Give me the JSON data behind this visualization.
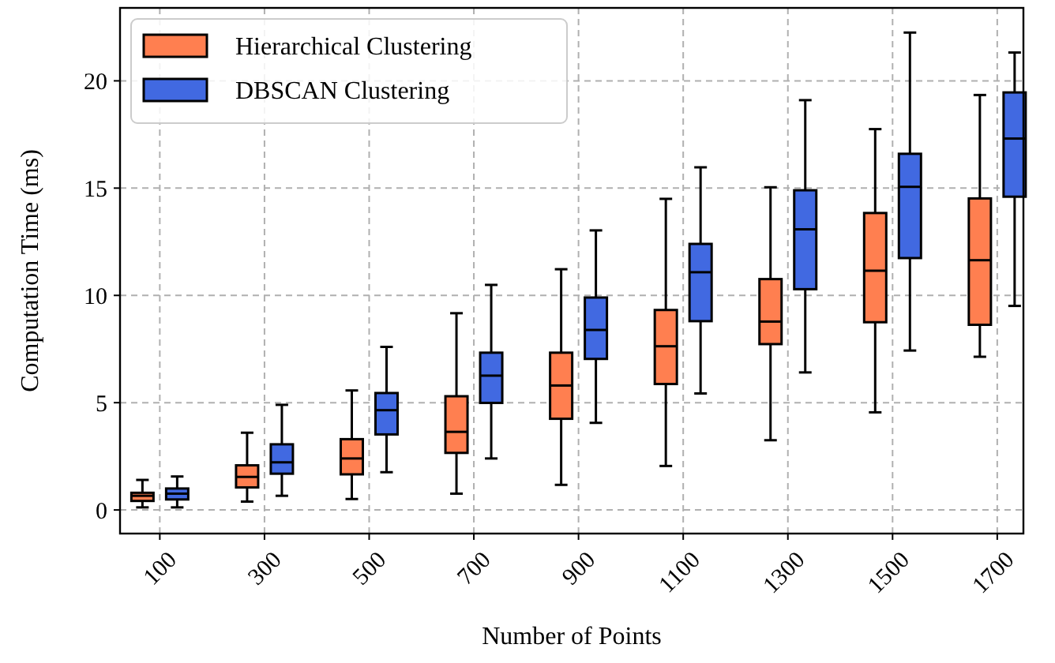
{
  "chart_data": {
    "type": "box",
    "xlabel": "Number of Points",
    "ylabel": "Computation Time (ms)",
    "categories": [
      "100",
      "300",
      "500",
      "700",
      "900",
      "1100",
      "1300",
      "1500",
      "1700"
    ],
    "ylim": [
      -1.1,
      23.4
    ],
    "yticks": [
      0,
      5,
      10,
      15,
      20
    ],
    "grid": true,
    "legend": "top left",
    "line_style": "dashed",
    "series": [
      {
        "name": "Hierarchical Clustering",
        "color": "#ff7f50",
        "boxes": [
          {
            "low": 0.12,
            "q1": 0.42,
            "median": 0.66,
            "q3": 0.8,
            "high": 1.4
          },
          {
            "low": 0.39,
            "q1": 1.05,
            "median": 1.54,
            "q3": 2.08,
            "high": 3.6
          },
          {
            "low": 0.51,
            "q1": 1.66,
            "median": 2.4,
            "q3": 3.3,
            "high": 5.57
          },
          {
            "low": 0.76,
            "q1": 2.66,
            "median": 3.64,
            "q3": 5.3,
            "high": 9.17
          },
          {
            "low": 1.17,
            "q1": 4.25,
            "median": 5.8,
            "q3": 7.33,
            "high": 11.22
          },
          {
            "low": 2.05,
            "q1": 5.87,
            "median": 7.63,
            "q3": 9.32,
            "high": 14.5
          },
          {
            "low": 3.25,
            "q1": 7.73,
            "median": 8.78,
            "q3": 10.76,
            "high": 15.04
          },
          {
            "low": 4.55,
            "q1": 8.75,
            "median": 11.15,
            "q3": 13.84,
            "high": 17.75
          },
          {
            "low": 7.14,
            "q1": 8.63,
            "median": 11.64,
            "q3": 14.52,
            "high": 19.34
          }
        ]
      },
      {
        "name": "DBSCAN Clustering",
        "color": "#4169e1",
        "boxes": [
          {
            "low": 0.12,
            "q1": 0.49,
            "median": 0.76,
            "q3": 1.0,
            "high": 1.56
          },
          {
            "low": 0.66,
            "q1": 1.69,
            "median": 2.22,
            "q3": 3.06,
            "high": 4.9
          },
          {
            "low": 1.76,
            "q1": 3.52,
            "median": 4.65,
            "q3": 5.45,
            "high": 7.6
          },
          {
            "low": 2.4,
            "q1": 4.99,
            "median": 6.26,
            "q3": 7.33,
            "high": 10.49
          },
          {
            "low": 4.06,
            "q1": 7.04,
            "median": 8.39,
            "q3": 9.9,
            "high": 13.03
          },
          {
            "low": 5.43,
            "q1": 8.8,
            "median": 11.08,
            "q3": 12.4,
            "high": 15.97
          },
          {
            "low": 6.41,
            "q1": 10.29,
            "median": 13.08,
            "q3": 14.9,
            "high": 19.1
          },
          {
            "low": 7.43,
            "q1": 11.74,
            "median": 15.06,
            "q3": 16.6,
            "high": 22.25
          },
          {
            "low": 9.51,
            "q1": 14.6,
            "median": 17.31,
            "q3": 19.46,
            "high": 21.32
          }
        ]
      }
    ]
  }
}
